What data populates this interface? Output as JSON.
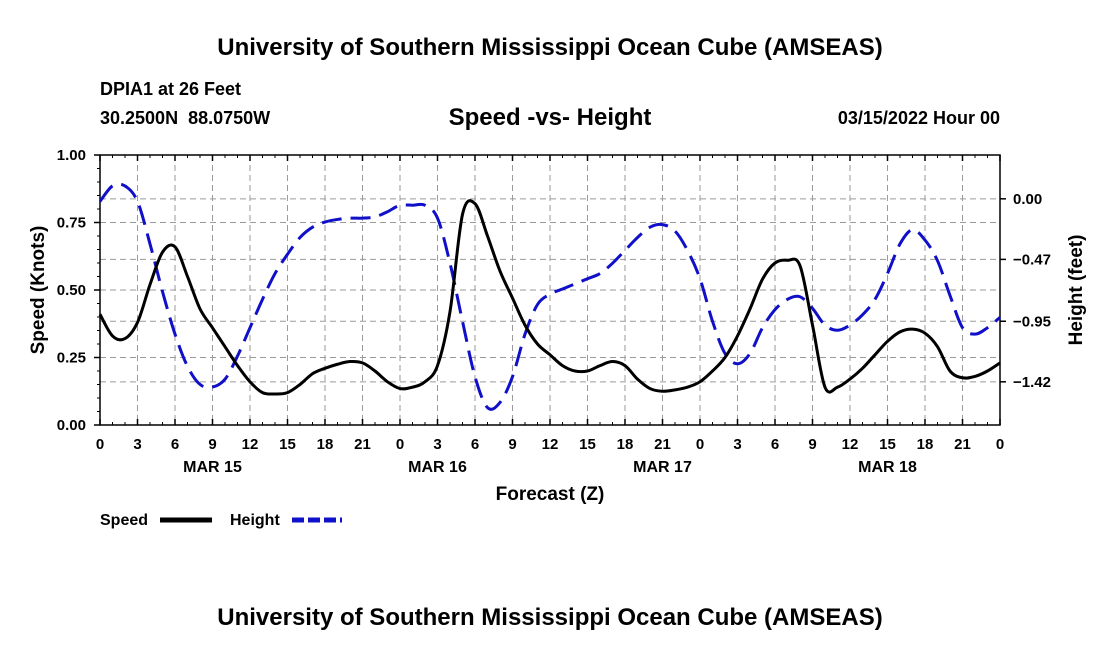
{
  "header": {
    "title": "University of Southern Mississippi Ocean Cube (AMSEAS)",
    "station": "DPIA1 at 26 Feet",
    "coords": "30.2500N  88.0750W",
    "subtitle": "Speed -vs- Height",
    "datetime": "03/15/2022 Hour 00"
  },
  "footer": {
    "title": "University of Southern Mississippi Ocean Cube (AMSEAS)"
  },
  "legend": {
    "speed_label": "Speed",
    "height_label": "Height"
  },
  "colors": {
    "speed": "#000000",
    "height": "#1010c8",
    "grid": "#9a9a9a"
  },
  "chart_data": {
    "type": "line",
    "title": "Speed -vs- Height",
    "xlabel": "Forecast (Z)",
    "ylabel": "Speed (Knots)",
    "y2label": "Height (feet)",
    "xlim": [
      0,
      72
    ],
    "ylim": [
      0,
      1
    ],
    "y2lim": [
      -1.755,
      0.34
    ],
    "yticks": [
      0,
      0.25,
      0.5,
      0.75,
      1
    ],
    "ytick_labels": [
      "0.00",
      "0.25",
      "0.50",
      "0.75",
      "1.00"
    ],
    "y2ticks": [
      0,
      -0.47,
      -0.95,
      -1.42
    ],
    "y2tick_labels": [
      "0.00",
      "−0.47",
      "−0.95",
      "−1.42"
    ],
    "xtick_hours": [
      0,
      3,
      6,
      9,
      12,
      15,
      18,
      21,
      24,
      27,
      30,
      33,
      36,
      39,
      42,
      45,
      48,
      51,
      54,
      57,
      60,
      63,
      66,
      69,
      72
    ],
    "xtick_labels": [
      "0",
      "3",
      "6",
      "9",
      "12",
      "15",
      "18",
      "21",
      "0",
      "3",
      "6",
      "9",
      "12",
      "15",
      "18",
      "21",
      "0",
      "3",
      "6",
      "9",
      "12",
      "15",
      "18",
      "21",
      "0"
    ],
    "day_labels": [
      {
        "hour": 9,
        "label": "MAR 15"
      },
      {
        "hour": 27,
        "label": "MAR 16"
      },
      {
        "hour": 45,
        "label": "MAR 17"
      },
      {
        "hour": 63,
        "label": "MAR 18"
      }
    ],
    "series": [
      {
        "name": "Speed",
        "axis": "left",
        "x": [
          0,
          1,
          2,
          3,
          4,
          5,
          6,
          7,
          8,
          9,
          10,
          11,
          12,
          13,
          14,
          15,
          16,
          17,
          18,
          19,
          20,
          21,
          22,
          23,
          24,
          25,
          26,
          27,
          28,
          29,
          30,
          31,
          32,
          33,
          34,
          35,
          36,
          37,
          38,
          39,
          40,
          41,
          42,
          43,
          44,
          45,
          46,
          47,
          48,
          49,
          50,
          51,
          52,
          53,
          54,
          55,
          56,
          57,
          58,
          59,
          60,
          61,
          62,
          63,
          64,
          65,
          66,
          67,
          68,
          69,
          70,
          71,
          72
        ],
        "values": [
          0.41,
          0.33,
          0.32,
          0.38,
          0.52,
          0.64,
          0.66,
          0.55,
          0.43,
          0.36,
          0.29,
          0.22,
          0.16,
          0.12,
          0.115,
          0.12,
          0.15,
          0.19,
          0.21,
          0.225,
          0.235,
          0.23,
          0.2,
          0.16,
          0.135,
          0.14,
          0.16,
          0.22,
          0.42,
          0.78,
          0.82,
          0.7,
          0.57,
          0.47,
          0.37,
          0.3,
          0.26,
          0.22,
          0.2,
          0.2,
          0.22,
          0.235,
          0.22,
          0.17,
          0.135,
          0.125,
          0.13,
          0.14,
          0.16,
          0.2,
          0.25,
          0.33,
          0.43,
          0.54,
          0.6,
          0.61,
          0.59,
          0.37,
          0.14,
          0.14,
          0.17,
          0.21,
          0.26,
          0.31,
          0.345,
          0.355,
          0.34,
          0.29,
          0.2,
          0.175,
          0.18,
          0.2,
          0.23
        ]
      },
      {
        "name": "Height",
        "axis": "right",
        "x": [
          0,
          1,
          2,
          3,
          4,
          5,
          6,
          7,
          8,
          9,
          10,
          11,
          12,
          13,
          14,
          15,
          16,
          17,
          18,
          19,
          20,
          21,
          22,
          23,
          24,
          25,
          26,
          27,
          28,
          29,
          30,
          31,
          32,
          33,
          34,
          35,
          36,
          37,
          38,
          39,
          40,
          41,
          42,
          43,
          44,
          45,
          46,
          47,
          48,
          49,
          50,
          51,
          52,
          53,
          54,
          55,
          56,
          57,
          58,
          59,
          60,
          61,
          62,
          63,
          64,
          65,
          66,
          67,
          68,
          69,
          70,
          71,
          72
        ],
        "values": [
          -0.02,
          0.1,
          0.1,
          -0.02,
          -0.35,
          -0.72,
          -1.05,
          -1.3,
          -1.44,
          -1.46,
          -1.4,
          -1.22,
          -1.0,
          -0.78,
          -0.58,
          -0.43,
          -0.3,
          -0.22,
          -0.18,
          -0.16,
          -0.15,
          -0.15,
          -0.14,
          -0.1,
          -0.05,
          -0.05,
          -0.05,
          -0.15,
          -0.5,
          -0.95,
          -1.38,
          -1.62,
          -1.58,
          -1.38,
          -1.05,
          -0.82,
          -0.74,
          -0.7,
          -0.66,
          -0.62,
          -0.58,
          -0.5,
          -0.4,
          -0.3,
          -0.22,
          -0.2,
          -0.25,
          -0.4,
          -0.62,
          -0.95,
          -1.2,
          -1.28,
          -1.2,
          -1.0,
          -0.86,
          -0.78,
          -0.76,
          -0.85,
          -0.98,
          -1.02,
          -0.98,
          -0.9,
          -0.78,
          -0.58,
          -0.35,
          -0.24,
          -0.32,
          -0.48,
          -0.75,
          -1.0,
          -1.05,
          -1.0,
          -0.92
        ]
      }
    ]
  }
}
